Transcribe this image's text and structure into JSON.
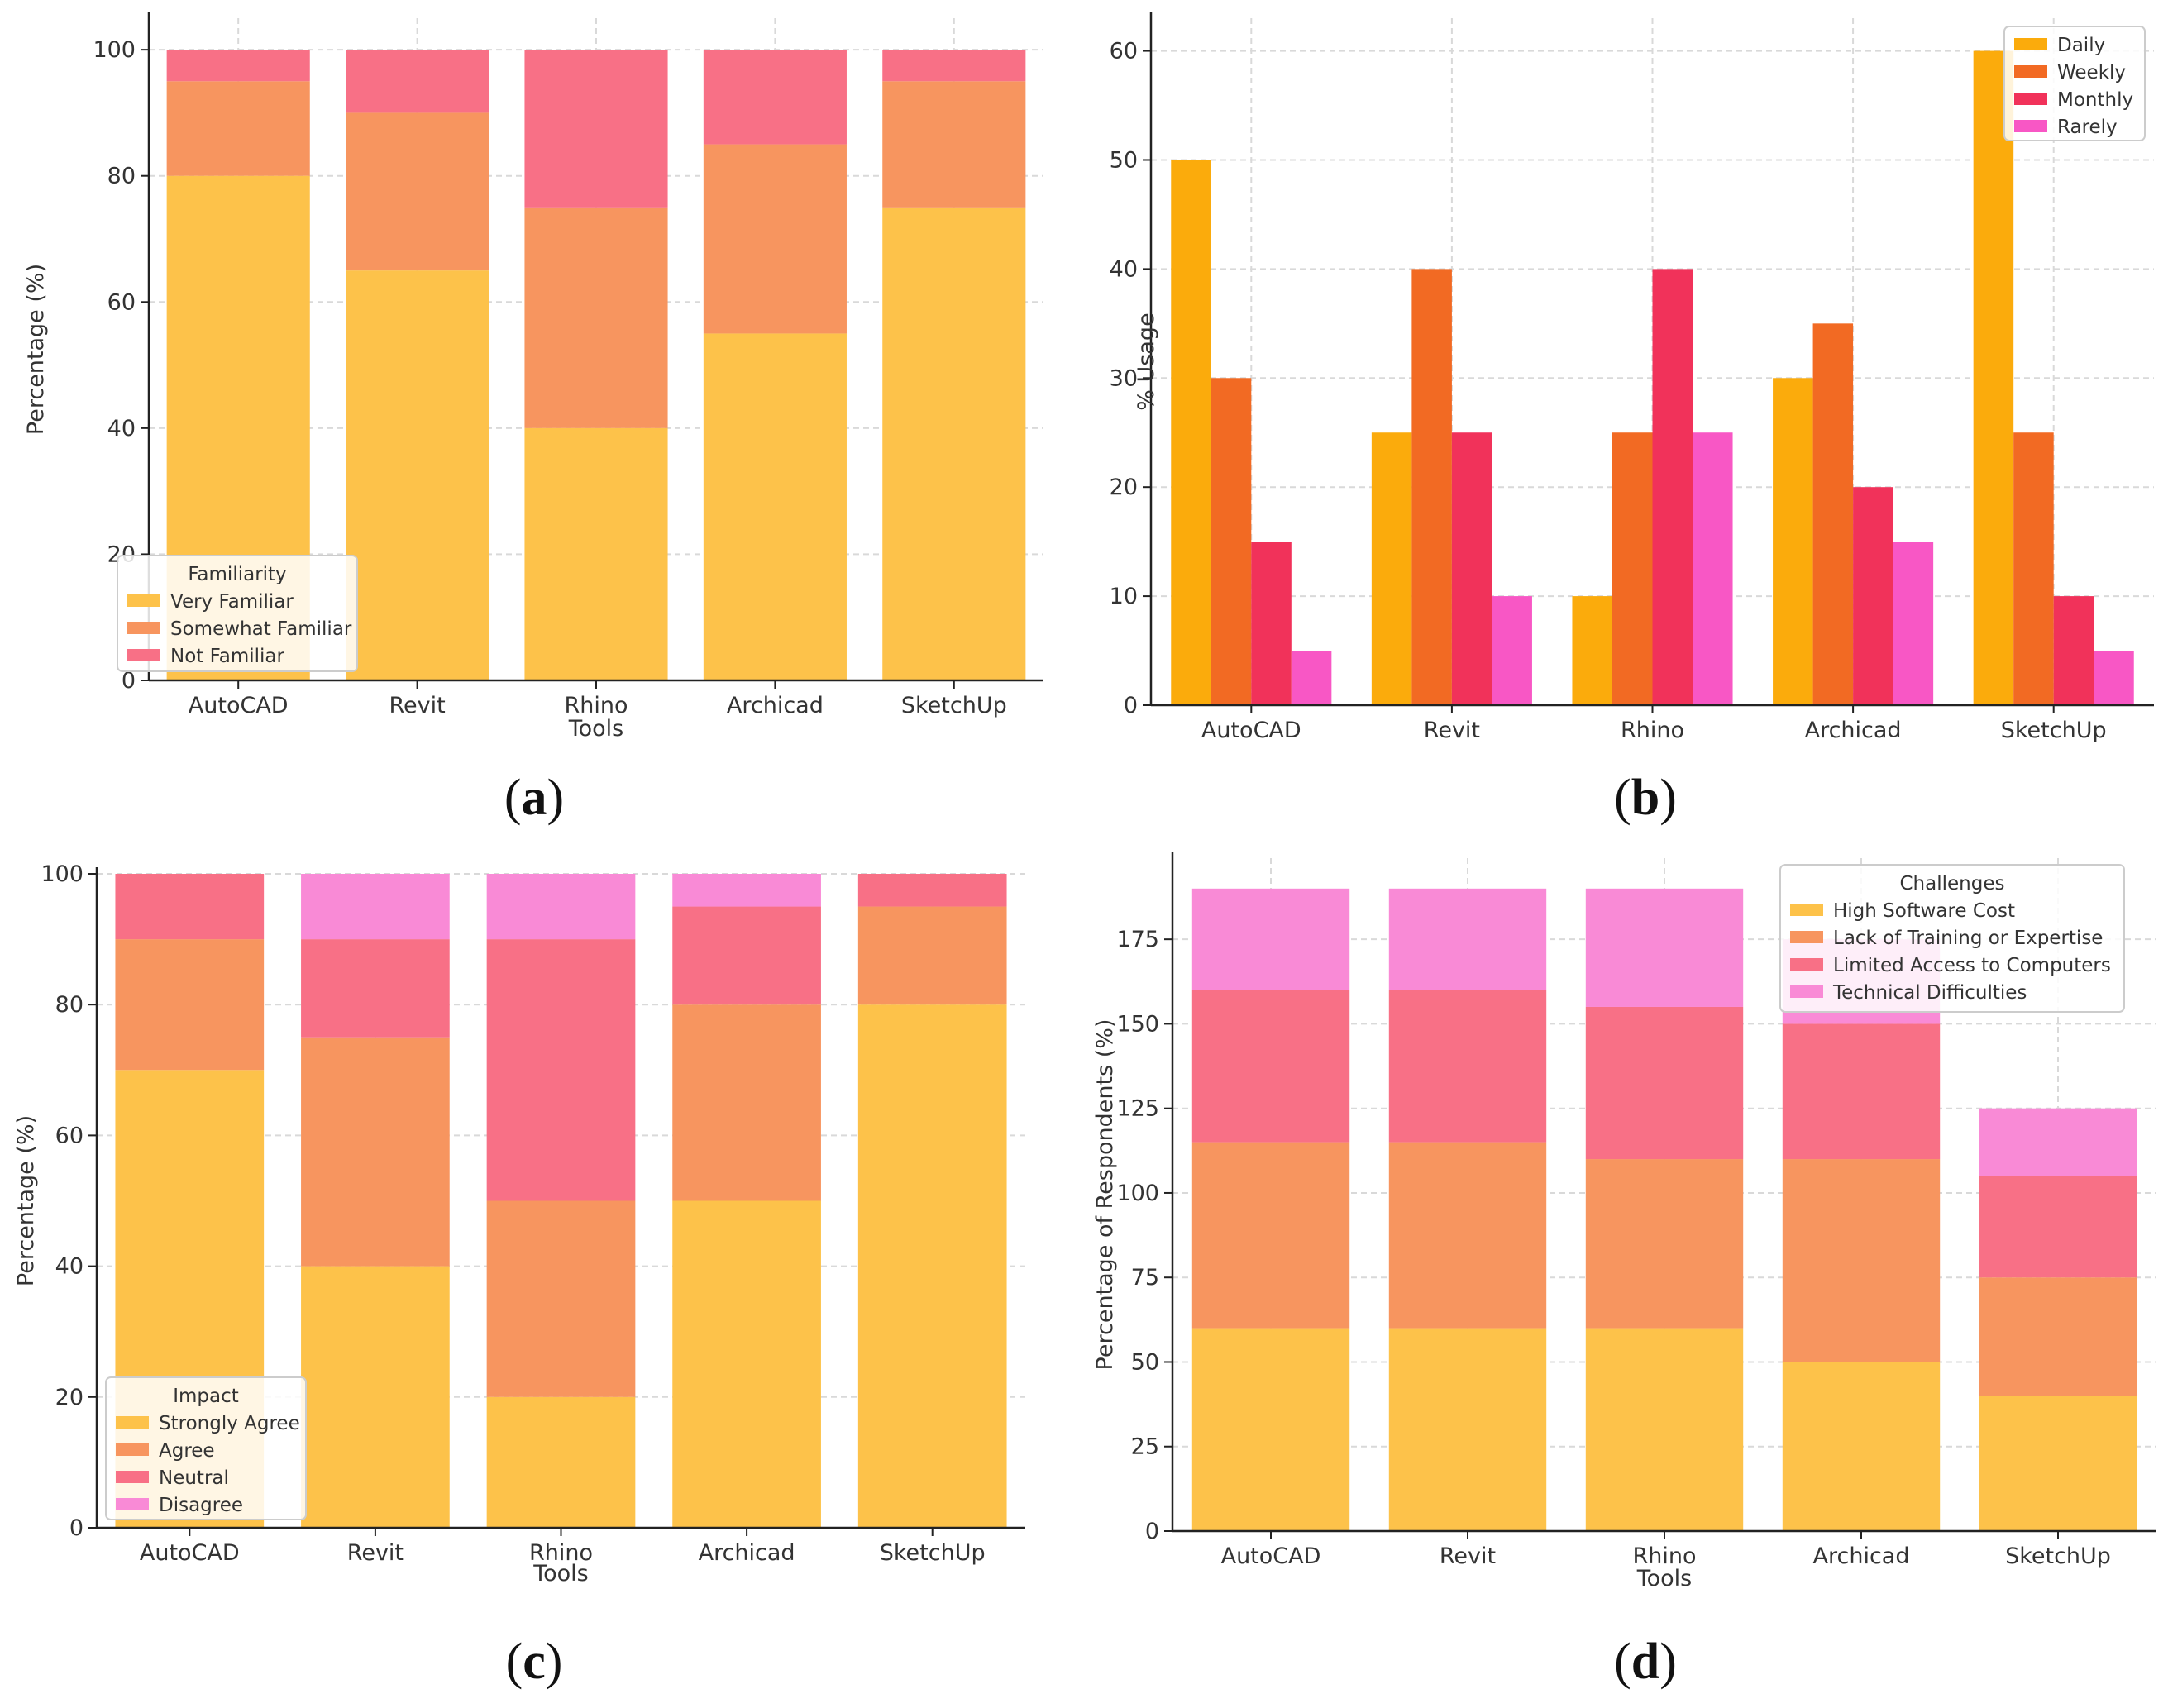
{
  "panels": [
    {
      "id": "a",
      "caption_open": "(",
      "caption_letter": "a",
      "caption_close": ")",
      "chart_data": {
        "type": "bar",
        "stacked": true,
        "categories": [
          "AutoCAD",
          "Revit",
          "Rhino",
          "Archicad",
          "SketchUp"
        ],
        "series": [
          {
            "name": "Very Familiar",
            "values": [
              80,
              65,
              40,
              55,
              75
            ],
            "color": "#fdc24a"
          },
          {
            "name": "Somewhat Familiar",
            "values": [
              15,
              25,
              35,
              30,
              20
            ],
            "color": "#f7955f"
          },
          {
            "name": "Not Familiar",
            "values": [
              5,
              10,
              25,
              15,
              5
            ],
            "color": "#f87086"
          }
        ],
        "xlabel": "Tools",
        "ylabel": "Percentage (%)",
        "ylim": [
          0,
          105
        ],
        "yticks": [
          0,
          20,
          40,
          60,
          80,
          100
        ],
        "grid": true,
        "legend_title": "Familiarity",
        "legend_position": "bottom-left"
      }
    },
    {
      "id": "b",
      "caption_open": "(",
      "caption_letter": "b",
      "caption_close": ")",
      "chart_data": {
        "type": "bar",
        "stacked": false,
        "categories": [
          "AutoCAD",
          "Revit",
          "Rhino",
          "Archicad",
          "SketchUp"
        ],
        "series": [
          {
            "name": "Daily",
            "values": [
              50,
              25,
              10,
              30,
              60
            ],
            "color": "#fbab0c"
          },
          {
            "name": "Weekly",
            "values": [
              30,
              40,
              25,
              35,
              25
            ],
            "color": "#f26a23"
          },
          {
            "name": "Monthly",
            "values": [
              15,
              25,
              40,
              20,
              10
            ],
            "color": "#f1325a"
          },
          {
            "name": "Rarely",
            "values": [
              5,
              10,
              25,
              15,
              5
            ],
            "color": "#f857c5"
          }
        ],
        "xlabel": "",
        "ylabel": "% Usage",
        "ylim": [
          0,
          63
        ],
        "yticks": [
          0,
          10,
          20,
          30,
          40,
          50,
          60
        ],
        "grid": true,
        "legend_title": "",
        "legend_position": "top-right"
      }
    },
    {
      "id": "c",
      "caption_open": "(",
      "caption_letter": "c",
      "caption_close": ")",
      "chart_data": {
        "type": "bar",
        "stacked": true,
        "categories": [
          "AutoCAD",
          "Revit",
          "Rhino",
          "Archicad",
          "SketchUp"
        ],
        "series": [
          {
            "name": "Strongly Agree",
            "values": [
              70,
              40,
              20,
              50,
              80
            ],
            "color": "#fdc24a"
          },
          {
            "name": "Agree",
            "values": [
              20,
              35,
              30,
              30,
              15
            ],
            "color": "#f7955f"
          },
          {
            "name": "Neutral",
            "values": [
              10,
              15,
              40,
              15,
              5
            ],
            "color": "#f87086"
          },
          {
            "name": "Disagree",
            "values": [
              0,
              10,
              10,
              5,
              0
            ],
            "color": "#f98ad6"
          }
        ],
        "xlabel": "Tools",
        "ylabel": "Percentage (%)",
        "ylim": [
          0,
          100
        ],
        "yticks": [
          0,
          20,
          40,
          60,
          80,
          100
        ],
        "grid": true,
        "legend_title": "Impact",
        "legend_position": "bottom-left"
      }
    },
    {
      "id": "d",
      "caption_open": "(",
      "caption_letter": "d",
      "caption_close": ")",
      "chart_data": {
        "type": "bar",
        "stacked": true,
        "categories": [
          "AutoCAD",
          "Revit",
          "Rhino",
          "Archicad",
          "SketchUp"
        ],
        "series": [
          {
            "name": "High Software Cost",
            "values": [
              60,
              60,
              60,
              50,
              40
            ],
            "color": "#fdc24a"
          },
          {
            "name": "Lack of Training or Expertise",
            "values": [
              55,
              55,
              50,
              60,
              35
            ],
            "color": "#f7955f"
          },
          {
            "name": "Limited Access to Computers",
            "values": [
              45,
              45,
              45,
              40,
              30
            ],
            "color": "#f87086"
          },
          {
            "name": "Technical Difficulties",
            "values": [
              30,
              30,
              35,
              25,
              20
            ],
            "color": "#f98ad6"
          }
        ],
        "xlabel": "Tools",
        "ylabel": "Percentage of Respondents (%)",
        "ylim": [
          0,
          199
        ],
        "yticks": [
          0,
          25,
          50,
          75,
          100,
          125,
          150,
          175
        ],
        "grid": true,
        "legend_title": "Challenges",
        "legend_position": "top-right"
      }
    }
  ]
}
